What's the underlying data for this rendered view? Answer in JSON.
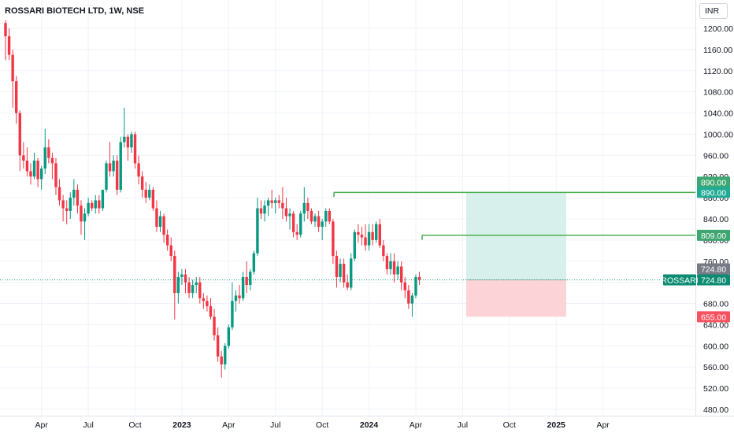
{
  "header": {
    "symbol_title": "ROSSARI BIOTECH LTD, 1W, NSE",
    "currency": "INR"
  },
  "chart_data": {
    "type": "candlestick",
    "title": "ROSSARI BIOTECH LTD, 1W, NSE",
    "currency": "INR",
    "ylim": [
      465,
      1230
    ],
    "y_ticks": [
      480,
      520,
      560,
      600,
      640,
      680,
      720,
      760,
      800,
      840,
      880,
      920,
      960,
      1000,
      1040,
      1080,
      1120,
      1160,
      1200
    ],
    "y_tick_labels": [
      "480.00",
      "520.00",
      "560.00",
      "600.00",
      "640.00",
      "680.00",
      "720.00",
      "760.00",
      "800.00",
      "840.00",
      "880.00",
      "920.00",
      "960.00",
      "1000.00",
      "1040.00",
      "1080.00",
      "1120.00",
      "1160.00",
      "1200.00"
    ],
    "x_ticks": [
      {
        "label": "Apr",
        "week": 10,
        "bold": false
      },
      {
        "label": "Jul",
        "week": 23,
        "bold": false
      },
      {
        "label": "Oct",
        "week": 36,
        "bold": false
      },
      {
        "label": "2023",
        "week": 49,
        "bold": true
      },
      {
        "label": "Apr",
        "week": 62,
        "bold": false
      },
      {
        "label": "Jul",
        "week": 75,
        "bold": false
      },
      {
        "label": "Oct",
        "week": 88,
        "bold": false
      },
      {
        "label": "2024",
        "week": 101,
        "bold": true
      },
      {
        "label": "Apr",
        "week": 114,
        "bold": false
      },
      {
        "label": "Jul",
        "week": 127,
        "bold": false
      },
      {
        "label": "Oct",
        "week": 140,
        "bold": false
      },
      {
        "label": "2025",
        "week": 153,
        "bold": true
      },
      {
        "label": "Apr",
        "week": 166,
        "bold": false
      }
    ],
    "candles": [
      [
        1210,
        1215,
        1140,
        1185
      ],
      [
        1185,
        1200,
        1140,
        1150
      ],
      [
        1150,
        1160,
        1050,
        1100
      ],
      [
        1100,
        1110,
        1020,
        1040
      ],
      [
        1040,
        1045,
        930,
        960
      ],
      [
        960,
        985,
        935,
        950
      ],
      [
        950,
        975,
        920,
        930
      ],
      [
        930,
        945,
        905,
        920
      ],
      [
        920,
        965,
        915,
        950
      ],
      [
        950,
        955,
        900,
        915
      ],
      [
        915,
        940,
        895,
        935
      ],
      [
        935,
        1010,
        925,
        975
      ],
      [
        975,
        990,
        945,
        955
      ],
      [
        955,
        965,
        915,
        945
      ],
      [
        945,
        955,
        885,
        900
      ],
      [
        900,
        915,
        865,
        875
      ],
      [
        875,
        885,
        835,
        860
      ],
      [
        860,
        875,
        830,
        855
      ],
      [
        855,
        890,
        840,
        880
      ],
      [
        880,
        915,
        865,
        895
      ],
      [
        895,
        905,
        850,
        865
      ],
      [
        865,
        875,
        810,
        835
      ],
      [
        835,
        860,
        800,
        850
      ],
      [
        850,
        880,
        845,
        870
      ],
      [
        870,
        875,
        855,
        860
      ],
      [
        860,
        885,
        850,
        875
      ],
      [
        875,
        885,
        850,
        860
      ],
      [
        860,
        895,
        855,
        895
      ],
      [
        895,
        950,
        890,
        945
      ],
      [
        945,
        985,
        920,
        930
      ],
      [
        930,
        960,
        920,
        950
      ],
      [
        950,
        960,
        885,
        895
      ],
      [
        895,
        995,
        890,
        985
      ],
      [
        985,
        1050,
        975,
        995
      ],
      [
        995,
        1000,
        950,
        975
      ],
      [
        975,
        1005,
        965,
        1000
      ],
      [
        1000,
        1005,
        935,
        945
      ],
      [
        945,
        960,
        905,
        920
      ],
      [
        920,
        930,
        880,
        895
      ],
      [
        895,
        910,
        870,
        880
      ],
      [
        880,
        905,
        875,
        895
      ],
      [
        895,
        900,
        855,
        860
      ],
      [
        860,
        875,
        815,
        825
      ],
      [
        825,
        855,
        815,
        845
      ],
      [
        845,
        850,
        795,
        810
      ],
      [
        810,
        820,
        780,
        790
      ],
      [
        790,
        805,
        760,
        770
      ],
      [
        770,
        780,
        650,
        700
      ],
      [
        700,
        740,
        680,
        730
      ],
      [
        730,
        745,
        715,
        735
      ],
      [
        735,
        745,
        700,
        720
      ],
      [
        720,
        730,
        690,
        700
      ],
      [
        700,
        725,
        690,
        715
      ],
      [
        715,
        730,
        700,
        720
      ],
      [
        720,
        730,
        680,
        690
      ],
      [
        690,
        700,
        670,
        685
      ],
      [
        685,
        695,
        665,
        675
      ],
      [
        675,
        690,
        650,
        655
      ],
      [
        655,
        670,
        610,
        620
      ],
      [
        620,
        635,
        570,
        580
      ],
      [
        580,
        590,
        540,
        565
      ],
      [
        565,
        605,
        555,
        600
      ],
      [
        600,
        640,
        595,
        635
      ],
      [
        635,
        720,
        630,
        685
      ],
      [
        685,
        705,
        665,
        695
      ],
      [
        695,
        715,
        680,
        690
      ],
      [
        690,
        740,
        685,
        730
      ],
      [
        730,
        760,
        700,
        715
      ],
      [
        715,
        745,
        705,
        740
      ],
      [
        740,
        780,
        735,
        775
      ],
      [
        775,
        880,
        770,
        860
      ],
      [
        860,
        875,
        840,
        850
      ],
      [
        850,
        875,
        835,
        865
      ],
      [
        865,
        880,
        845,
        875
      ],
      [
        875,
        895,
        860,
        870
      ],
      [
        870,
        880,
        850,
        875
      ],
      [
        875,
        885,
        860,
        870
      ],
      [
        870,
        900,
        840,
        860
      ],
      [
        860,
        880,
        835,
        845
      ],
      [
        845,
        860,
        820,
        850
      ],
      [
        850,
        855,
        805,
        815
      ],
      [
        815,
        830,
        800,
        810
      ],
      [
        810,
        855,
        805,
        850
      ],
      [
        850,
        900,
        835,
        870
      ],
      [
        870,
        880,
        840,
        855
      ],
      [
        855,
        860,
        830,
        835
      ],
      [
        835,
        850,
        825,
        845
      ],
      [
        845,
        855,
        815,
        825
      ],
      [
        825,
        840,
        800,
        835
      ],
      [
        835,
        860,
        825,
        855
      ],
      [
        855,
        860,
        830,
        835
      ],
      [
        835,
        840,
        755,
        770
      ],
      [
        770,
        780,
        710,
        730
      ],
      [
        730,
        765,
        720,
        755
      ],
      [
        755,
        765,
        710,
        720
      ],
      [
        720,
        735,
        705,
        710
      ],
      [
        710,
        775,
        705,
        765
      ],
      [
        765,
        820,
        760,
        815
      ],
      [
        815,
        830,
        795,
        810
      ],
      [
        810,
        825,
        790,
        805
      ],
      [
        805,
        830,
        780,
        790
      ],
      [
        790,
        830,
        780,
        815
      ],
      [
        815,
        830,
        790,
        800
      ],
      [
        800,
        835,
        795,
        830
      ],
      [
        830,
        840,
        785,
        790
      ],
      [
        790,
        800,
        760,
        770
      ],
      [
        770,
        775,
        735,
        745
      ],
      [
        745,
        775,
        735,
        760
      ],
      [
        760,
        775,
        720,
        735
      ],
      [
        735,
        760,
        725,
        750
      ],
      [
        750,
        760,
        705,
        720
      ],
      [
        720,
        730,
        690,
        705
      ],
      [
        705,
        715,
        670,
        680
      ],
      [
        680,
        700,
        655,
        695
      ],
      [
        695,
        735,
        690,
        730
      ],
      [
        730,
        740,
        715,
        724.8
      ]
    ],
    "trade_levels": {
      "target": 890.0,
      "target_labels": [
        "890.00",
        "890.00"
      ],
      "entry": 724.8,
      "entry_label": "724.80",
      "stop": 655.0,
      "stop_label": "655.00",
      "resistance": 809.0,
      "resistance_label": "809.00",
      "last_price_label_name": "ROSSARI",
      "last_price": 724.8,
      "last_price_label": "724.80"
    },
    "colors": {
      "up": "#089981",
      "down": "#f23645",
      "line_green": "#4caf50",
      "target_zone": "#d7f0eb",
      "stop_zone": "#fcd4d7",
      "target_badge": "#3fa672",
      "target_badge_dark": "#22ab94",
      "entry_badge_gray": "#787b86",
      "entry_badge_teal": "#0c8c73",
      "stop_badge": "#f7525f"
    }
  }
}
